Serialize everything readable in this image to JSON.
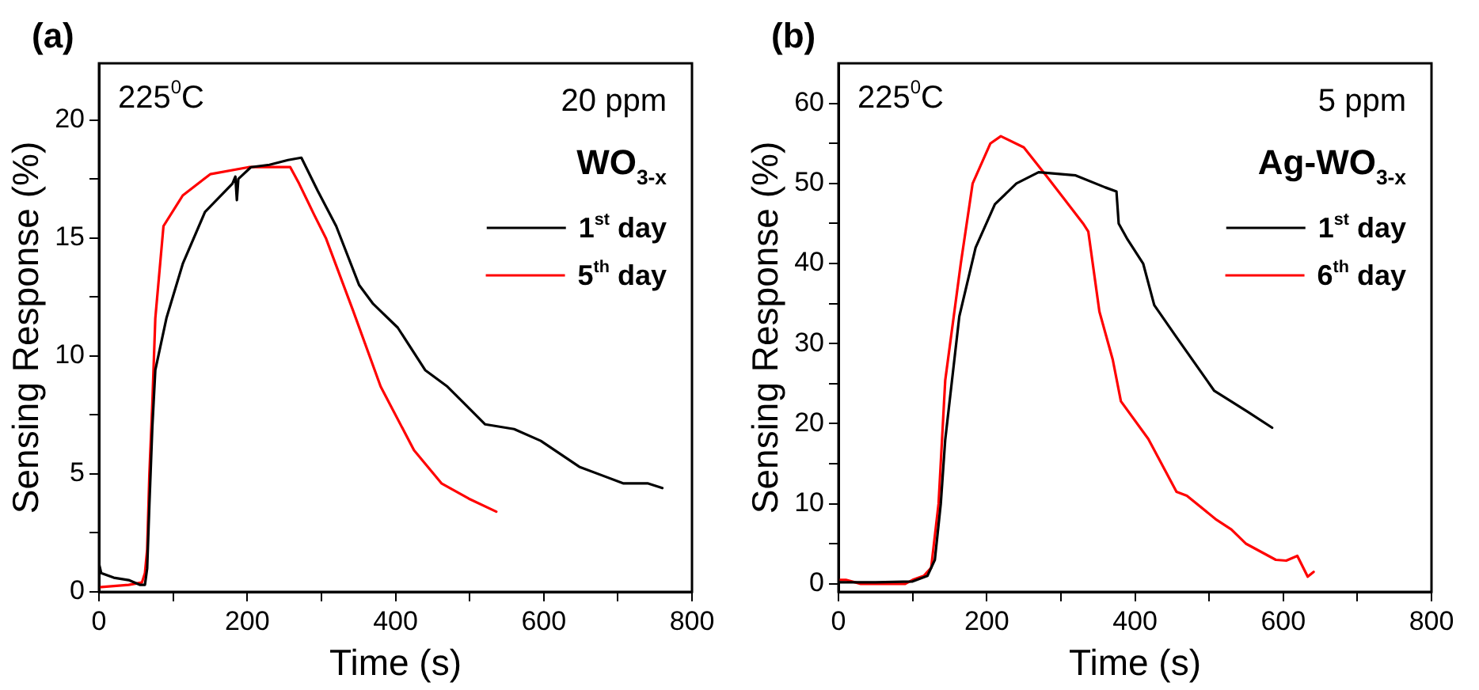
{
  "chart_data": [
    {
      "type": "line",
      "xlabel": "Time (s)",
      "ylabel": "Sensing Response (%)",
      "annotations": [
        "(a)",
        "225$^{0}$C",
        "20 ppm",
        "WO$_{3-x}$"
      ],
      "legend": "top right",
      "grid": false,
      "marker": "none",
      "line_style": "solid",
      "xlim": [
        0,
        800
      ],
      "ylim": [
        0,
        22.4
      ],
      "xticks": [
        0,
        {
          "value": 100,
          "label": null
        },
        200,
        {
          "value": 300,
          "label": null
        },
        400,
        {
          "value": 500,
          "label": null
        },
        600,
        {
          "value": 700,
          "label": null
        },
        800
      ],
      "yticks": [
        0,
        {
          "value": 2.5,
          "label": null
        },
        5,
        {
          "value": 7.5,
          "label": null
        },
        10,
        {
          "value": 12.5,
          "label": null
        },
        15,
        {
          "value": 17.5,
          "label": null
        },
        20
      ],
      "series": [
        {
          "name": "1$^{st}$ day",
          "color": "#000000",
          "x": [
            0,
            3,
            20,
            40,
            55,
            62,
            65,
            68,
            72,
            76,
            91,
            113,
            143,
            180,
            184,
            186,
            188,
            205,
            230,
            255,
            273,
            295,
            320,
            351,
            370,
            403,
            440,
            470,
            521,
            560,
            596,
            648,
            707,
            740,
            760
          ],
          "values": [
            1.2,
            0.8,
            0.6,
            0.5,
            0.3,
            0.3,
            1.0,
            3.7,
            7.0,
            9.4,
            11.6,
            13.9,
            16.1,
            17.3,
            17.6,
            16.6,
            17.5,
            18.0,
            18.1,
            18.3,
            18.4,
            17.0,
            15.5,
            13.0,
            12.2,
            11.2,
            9.4,
            8.7,
            7.1,
            6.9,
            6.4,
            5.3,
            4.6,
            4.6,
            4.4
          ]
        },
        {
          "name": "5$^{th}$ day",
          "color": "#ff0000",
          "x": [
            0,
            40,
            58,
            62,
            65,
            68,
            72,
            76,
            87,
            113,
            150,
            202,
            230,
            258,
            270,
            290,
            306,
            343,
            380,
            425,
            462,
            499,
            536
          ],
          "values": [
            0.2,
            0.3,
            0.4,
            0.8,
            1.8,
            5.0,
            8.0,
            11.6,
            15.5,
            16.8,
            17.7,
            18.0,
            18.0,
            18.0,
            17.3,
            16.0,
            15.0,
            11.9,
            8.7,
            6.0,
            4.6,
            3.95,
            3.4
          ]
        }
      ]
    },
    {
      "type": "line",
      "xlabel": "Time (s)",
      "ylabel": "Sensing Response (%)",
      "annotations": [
        "(b)",
        "225$^{0}$C",
        "5 ppm",
        "Ag-WO$_{3-x}$"
      ],
      "legend": "top right",
      "grid": false,
      "marker": "none",
      "line_style": "solid",
      "xlim": [
        0,
        800
      ],
      "ylim": [
        -1,
        65
      ],
      "xticks": [
        0,
        {
          "value": 100,
          "label": null
        },
        200,
        {
          "value": 300,
          "label": null
        },
        400,
        {
          "value": 500,
          "label": null
        },
        600,
        {
          "value": 700,
          "label": null
        },
        800
      ],
      "yticks": [
        0,
        {
          "value": 5,
          "label": null
        },
        10,
        {
          "value": 15,
          "label": null
        },
        20,
        {
          "value": 25,
          "label": null
        },
        30,
        {
          "value": 35,
          "label": null
        },
        40,
        {
          "value": 45,
          "label": null
        },
        50,
        {
          "value": 55,
          "label": null
        },
        60
      ],
      "series": [
        {
          "name": "1$^{st}$ day",
          "color": "#000000",
          "x": [
            0,
            50,
            100,
            120,
            130,
            138,
            144,
            163,
            185,
            211,
            240,
            270,
            320,
            360,
            375,
            378,
            390,
            411,
            426,
            456,
            507,
            552,
            585
          ],
          "values": [
            0.2,
            0.2,
            0.3,
            1,
            3,
            10,
            18,
            33.4,
            42,
            47.4,
            50,
            51.4,
            51,
            49.5,
            49,
            45,
            43,
            40,
            34.8,
            30.8,
            24.1,
            21.5,
            19.5
          ]
        },
        {
          "name": "6$^{th}$ day",
          "color": "#ff0000",
          "x": [
            0,
            10,
            30,
            60,
            90,
            100,
            115,
            125,
            135,
            144,
            165,
            181,
            205,
            219,
            250,
            280,
            305,
            330,
            337,
            352,
            370,
            381,
            418,
            456,
            470,
            510,
            530,
            550,
            590,
            604,
            619,
            633,
            641
          ],
          "values": [
            0.5,
            0.5,
            0,
            0,
            0,
            0.5,
            1,
            2,
            10,
            25.4,
            40,
            50,
            55,
            55.9,
            54.5,
            51,
            48,
            45,
            44,
            34,
            28,
            22.8,
            18.1,
            11.5,
            11,
            8,
            6.8,
            5,
            3,
            2.9,
            3.5,
            0.9,
            1.5
          ]
        }
      ]
    }
  ]
}
